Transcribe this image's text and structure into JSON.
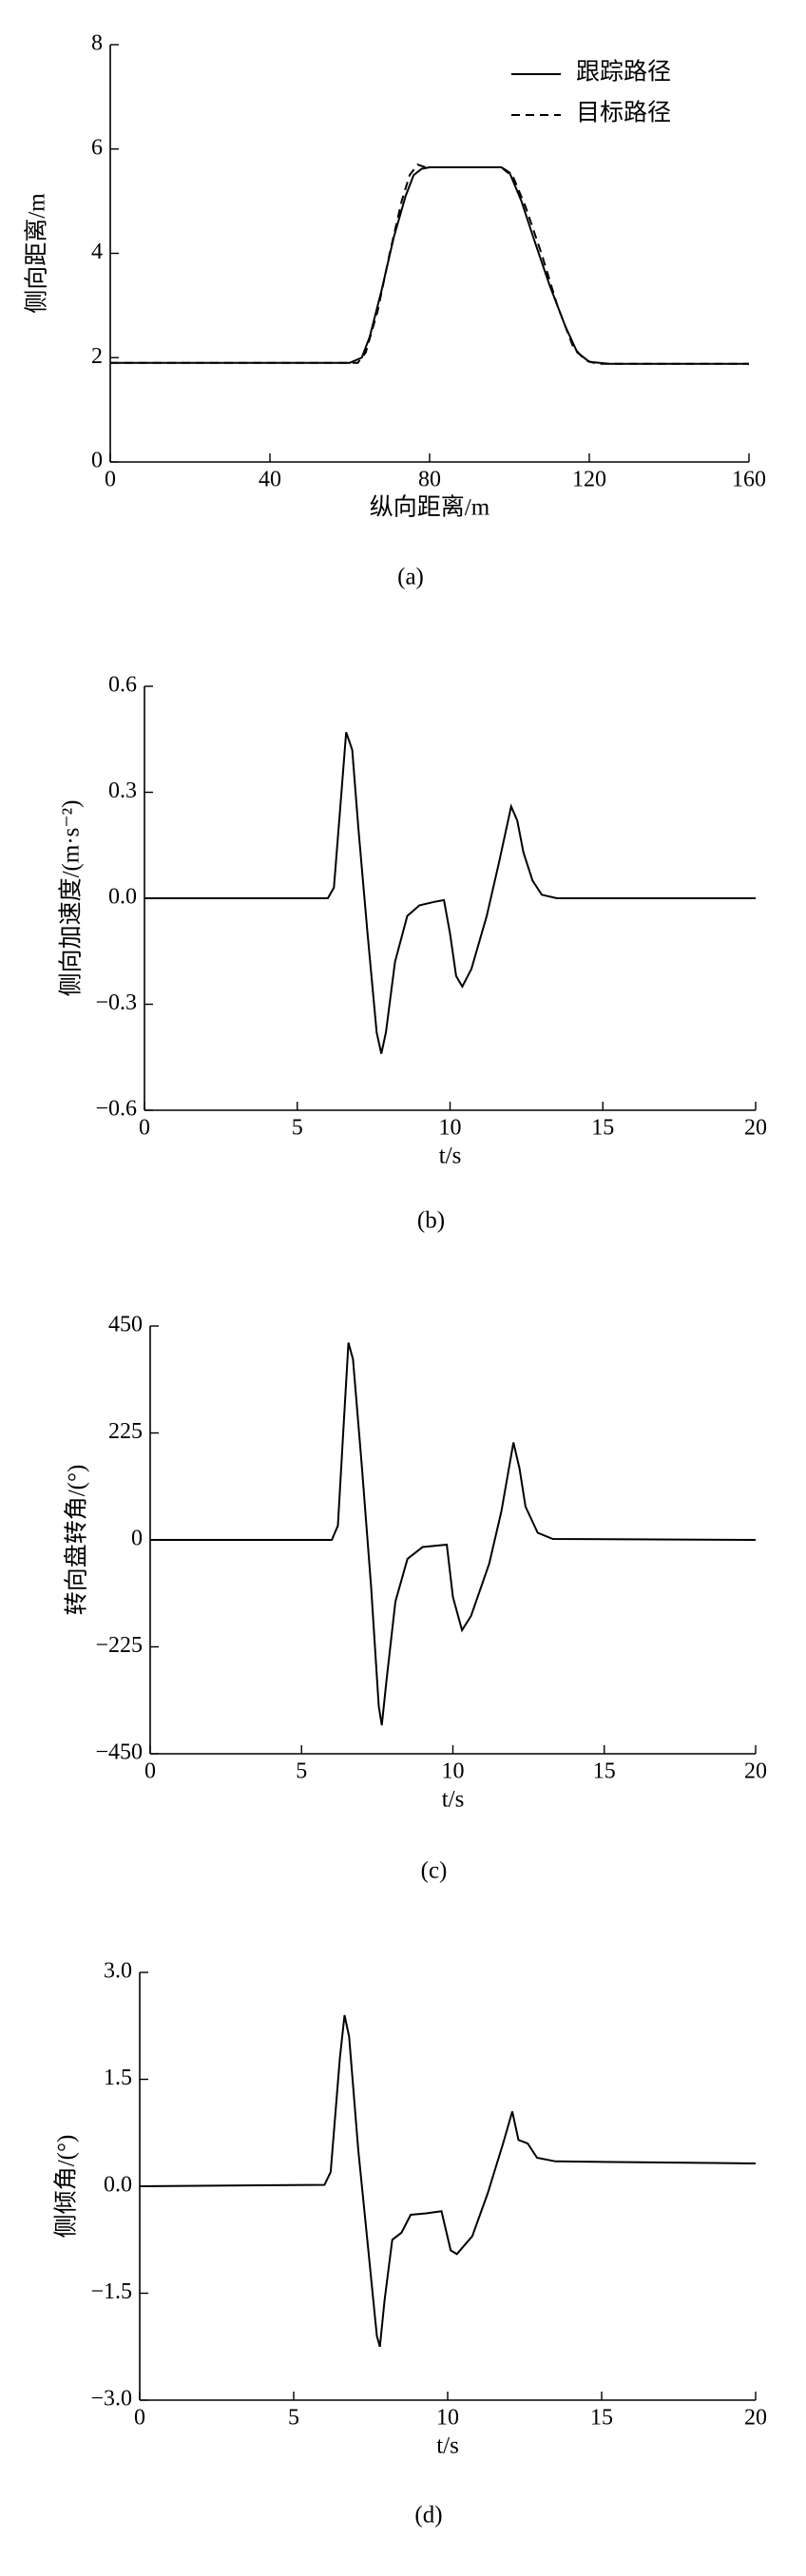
{
  "chart_data": [
    {
      "type": "line",
      "caption": "(a)",
      "x_label": "纵向距离/m",
      "y_label": "侧向距离/m",
      "xlim": [
        0,
        160
      ],
      "ylim": [
        0,
        8
      ],
      "xticks": [
        0,
        40,
        80,
        120,
        160
      ],
      "yticks": [
        0,
        2,
        4,
        6,
        8
      ],
      "legend": "upper right",
      "series": [
        {
          "name": "跟踪路径",
          "color": "#000000",
          "line_style": "solid",
          "x": [
            0,
            60,
            63,
            65,
            68,
            71,
            74,
            76,
            78,
            80,
            90,
            98,
            100,
            103,
            106,
            110,
            114,
            117,
            120,
            125,
            160
          ],
          "values": [
            1.9,
            1.9,
            2.0,
            2.4,
            3.3,
            4.3,
            5.1,
            5.5,
            5.62,
            5.65,
            5.65,
            5.65,
            5.55,
            5.0,
            4.3,
            3.4,
            2.6,
            2.1,
            1.92,
            1.88,
            1.88
          ]
        },
        {
          "name": "目标路径",
          "color": "#000000",
          "line_style": "dashed",
          "x": [
            0,
            62,
            64,
            67,
            70,
            73,
            75,
            77,
            79,
            98,
            101,
            104,
            108,
            112,
            116,
            119,
            122,
            160
          ],
          "values": [
            1.9,
            1.9,
            2.1,
            2.9,
            4.0,
            5.0,
            5.5,
            5.7,
            5.65,
            5.65,
            5.45,
            4.9,
            4.0,
            3.0,
            2.2,
            1.95,
            1.88,
            1.88
          ]
        }
      ]
    },
    {
      "type": "line",
      "caption": "(b)",
      "x_label": "t/s",
      "y_label": "侧向加速度/(m·s⁻²)",
      "xlim": [
        0,
        20
      ],
      "ylim": [
        -0.6,
        0.6
      ],
      "xticks": [
        0,
        5,
        10,
        15,
        20
      ],
      "yticks": [
        {
          "value": -0.6,
          "label": "−0.6"
        },
        {
          "value": -0.3,
          "label": "−0.3"
        },
        {
          "value": 0,
          "label": "0.0"
        },
        0.3,
        0.6
      ],
      "series": [
        {
          "color": "#000000",
          "line_style": "solid",
          "x": [
            0,
            6,
            6.2,
            6.4,
            6.6,
            6.8,
            7.0,
            7.3,
            7.6,
            7.75,
            7.9,
            8.2,
            8.6,
            9.0,
            9.5,
            9.8,
            10.0,
            10.2,
            10.4,
            10.7,
            11.2,
            11.6,
            12.0,
            12.2,
            12.4,
            12.7,
            13.0,
            13.5,
            20
          ],
          "values": [
            0,
            0,
            0.03,
            0.25,
            0.47,
            0.42,
            0.2,
            -0.1,
            -0.38,
            -0.44,
            -0.38,
            -0.18,
            -0.05,
            -0.02,
            -0.01,
            -0.005,
            -0.1,
            -0.22,
            -0.25,
            -0.2,
            -0.05,
            0.1,
            0.26,
            0.22,
            0.13,
            0.05,
            0.01,
            0,
            0
          ]
        }
      ]
    },
    {
      "type": "line",
      "caption": "(c)",
      "x_label": "t/s",
      "y_label": "转向盘转角/(°)",
      "xlim": [
        0,
        20
      ],
      "ylim": [
        -450,
        450
      ],
      "xticks": [
        0,
        5,
        10,
        15,
        20
      ],
      "yticks": [
        {
          "value": -450,
          "label": "−450"
        },
        {
          "value": -225,
          "label": "−225"
        },
        0,
        225,
        450
      ],
      "series": [
        {
          "color": "#000000",
          "line_style": "solid",
          "x": [
            0,
            6.0,
            6.2,
            6.4,
            6.55,
            6.7,
            7.0,
            7.3,
            7.55,
            7.65,
            7.8,
            8.1,
            8.5,
            9.0,
            9.8,
            10.0,
            10.3,
            10.6,
            11.2,
            11.6,
            12.0,
            12.2,
            12.4,
            12.8,
            13.3,
            20
          ],
          "values": [
            0,
            0,
            30,
            250,
            415,
            380,
            150,
            -100,
            -350,
            -390,
            -300,
            -130,
            -40,
            -15,
            -10,
            -120,
            -190,
            -160,
            -50,
            60,
            205,
            150,
            70,
            15,
            2,
            0
          ]
        }
      ]
    },
    {
      "type": "line",
      "caption": "(d)",
      "x_label": "t/s",
      "y_label": "侧倾角/(°)",
      "xlim": [
        0,
        20
      ],
      "ylim": [
        -3,
        3
      ],
      "xticks": [
        0,
        5,
        10,
        15,
        20
      ],
      "yticks": [
        {
          "value": -3,
          "label": "−3.0"
        },
        {
          "value": -1.5,
          "label": "−1.5"
        },
        {
          "value": 0,
          "label": "0.0"
        },
        1.5,
        {
          "value": 3,
          "label": "3.0"
        }
      ],
      "series": [
        {
          "color": "#000000",
          "line_style": "solid",
          "x": [
            0,
            6.0,
            6.2,
            6.5,
            6.65,
            6.8,
            7.1,
            7.4,
            7.7,
            7.8,
            7.95,
            8.2,
            8.5,
            8.8,
            9.3,
            9.8,
            10.1,
            10.3,
            10.8,
            11.3,
            11.8,
            12.1,
            12.3,
            12.6,
            12.9,
            13.5,
            20
          ],
          "values": [
            0,
            0.02,
            0.2,
            1.8,
            2.4,
            2.1,
            0.5,
            -0.8,
            -2.1,
            -2.25,
            -1.6,
            -0.75,
            -0.65,
            -0.4,
            -0.38,
            -0.35,
            -0.9,
            -0.95,
            -0.7,
            -0.1,
            0.6,
            1.05,
            0.65,
            0.6,
            0.4,
            0.35,
            0.32
          ]
        }
      ]
    }
  ]
}
